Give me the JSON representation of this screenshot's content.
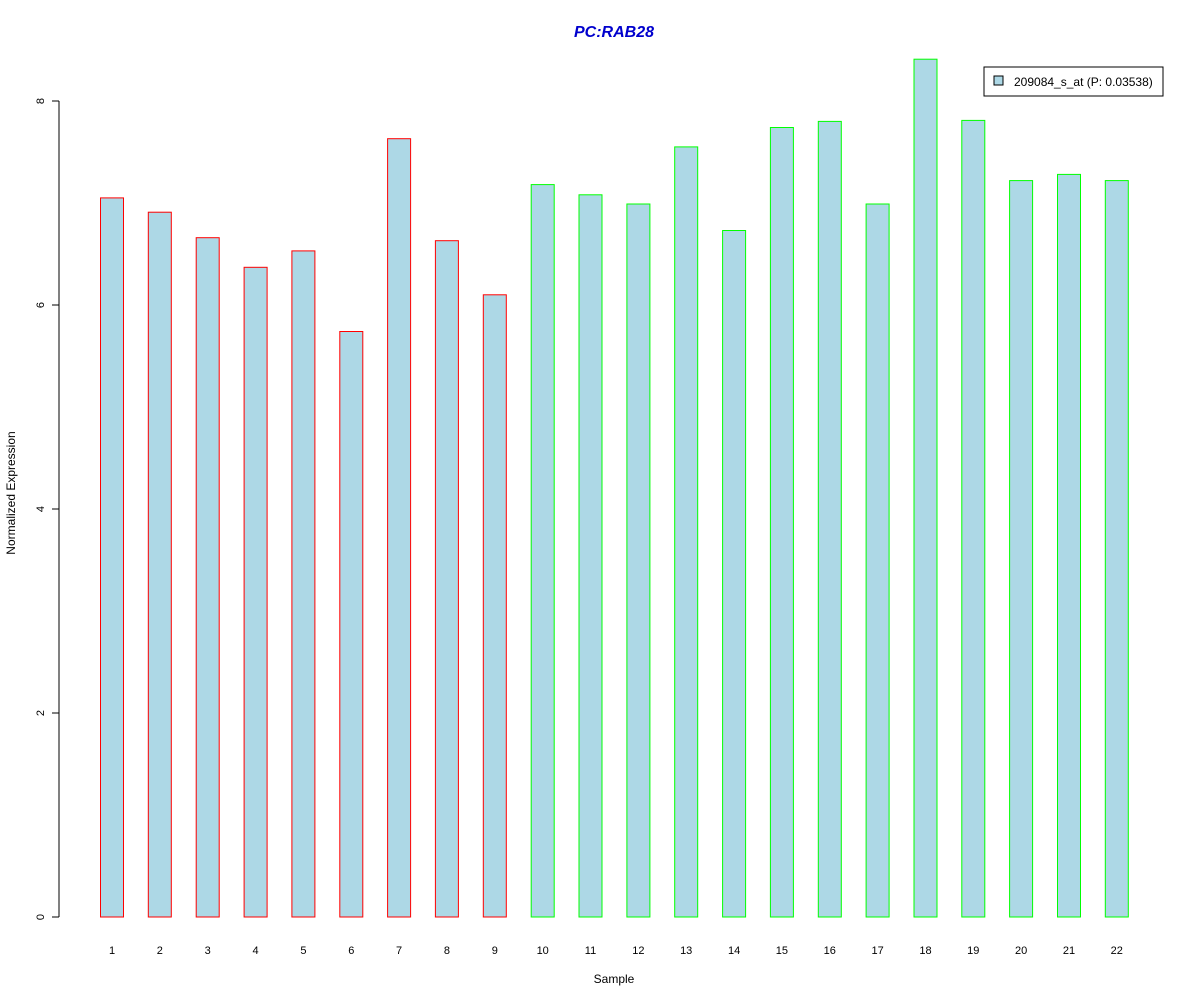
{
  "chart_data": {
    "type": "bar",
    "title": "PC:RAB28",
    "xlabel": "Sample",
    "ylabel": "Normalized Expression",
    "ylim": [
      0,
      8.4
    ],
    "y_ticks": [
      0,
      2,
      4,
      6,
      8
    ],
    "categories": [
      "1",
      "2",
      "3",
      "4",
      "5",
      "6",
      "7",
      "8",
      "9",
      "10",
      "11",
      "12",
      "13",
      "14",
      "15",
      "16",
      "17",
      "18",
      "19",
      "20",
      "21",
      "22"
    ],
    "series": [
      {
        "name": "209084_s_at (P: 0.03538)",
        "values": [
          7.05,
          6.91,
          6.66,
          6.37,
          6.53,
          5.74,
          7.63,
          6.63,
          6.1,
          7.18,
          7.08,
          6.99,
          7.55,
          6.73,
          7.74,
          7.8,
          6.99,
          8.41,
          7.81,
          7.22,
          7.28,
          7.22
        ]
      }
    ],
    "group_outline": [
      "red",
      "red",
      "red",
      "red",
      "red",
      "red",
      "red",
      "red",
      "red",
      "green",
      "green",
      "green",
      "green",
      "green",
      "green",
      "green",
      "green",
      "green",
      "green",
      "green",
      "green",
      "green"
    ],
    "grid": false,
    "legend_position": "top-right",
    "colors": {
      "bar_fill": "#add8e6",
      "group_red": "#ff0000",
      "group_green": "#00ff00",
      "title": "#0000cd"
    }
  }
}
